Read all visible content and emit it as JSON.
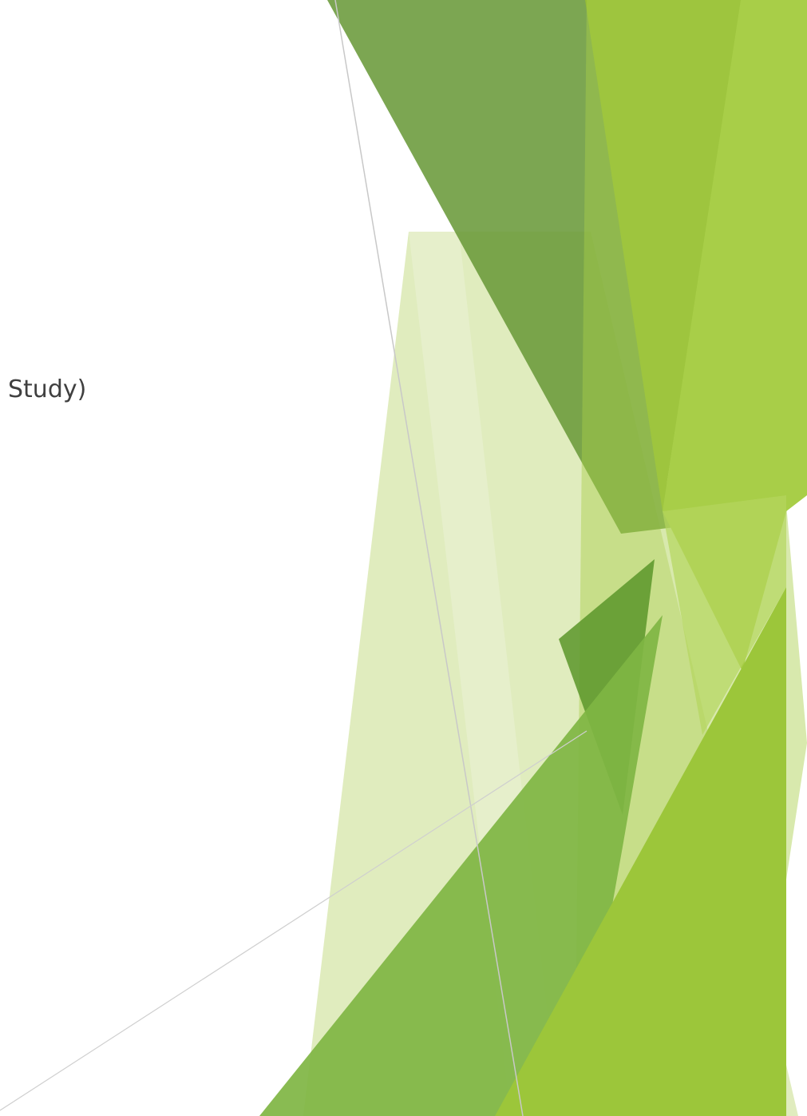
{
  "slide": {
    "title_fragment": "Study)"
  },
  "theme": {
    "name": "facet-green",
    "colors": {
      "dark_green": "#6a9a3a",
      "mid_green": "#7fb543",
      "lime": "#9cc63a",
      "light_lime": "#a9cf4a",
      "pale_green": "#d6e6a8",
      "text": "#404040",
      "thin_line": "#c8c8c8",
      "background": "#ffffff"
    }
  }
}
